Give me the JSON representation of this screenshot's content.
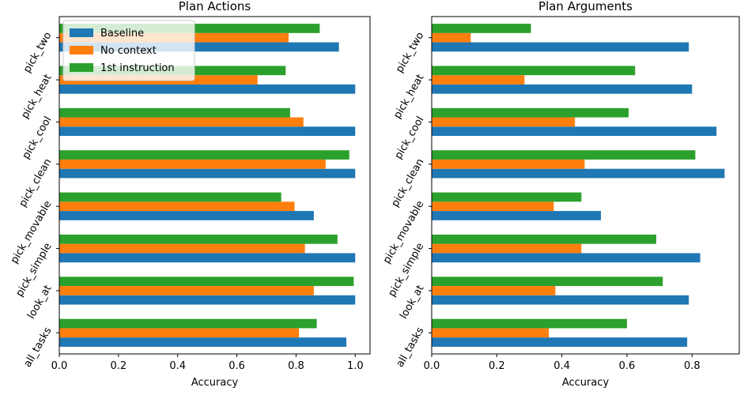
{
  "chart_data": [
    {
      "type": "bar",
      "orientation": "horizontal",
      "title": "Plan Actions",
      "xlabel": "Accuracy",
      "ylabel": "",
      "xlim": [
        0,
        1.05
      ],
      "xticks": [
        0.0,
        0.2,
        0.4,
        0.6,
        0.8,
        1.0
      ],
      "xtick_labels": [
        "0.0",
        "0.2",
        "0.4",
        "0.6",
        "0.8",
        "1.0"
      ],
      "categories": [
        "all_tasks",
        "look_at",
        "pick_simple",
        "pick_movable",
        "pick_clean",
        "pick_cool",
        "pick_heat",
        "pick_two"
      ],
      "series": [
        {
          "name": "Baseline",
          "color": "#1f77b4",
          "values": [
            0.97,
            1.0,
            1.0,
            0.86,
            1.0,
            1.0,
            1.0,
            0.945
          ]
        },
        {
          "name": "No context",
          "color": "#ff7f0e",
          "values": [
            0.81,
            0.86,
            0.83,
            0.795,
            0.9,
            0.825,
            0.67,
            0.775
          ]
        },
        {
          "name": "1st instruction",
          "color": "#2ca02c",
          "values": [
            0.87,
            0.995,
            0.94,
            0.75,
            0.98,
            0.78,
            0.765,
            0.88
          ]
        }
      ],
      "legend": {
        "position": "top-left",
        "entries": [
          "Baseline",
          "No context",
          "1st instruction"
        ]
      },
      "grid": false
    },
    {
      "type": "bar",
      "orientation": "horizontal",
      "title": "Plan Arguments",
      "xlabel": "Accuracy",
      "ylabel": "",
      "xlim": [
        0,
        0.945
      ],
      "xticks": [
        0.0,
        0.2,
        0.4,
        0.6,
        0.8
      ],
      "xtick_labels": [
        "0.0",
        "0.2",
        "0.4",
        "0.6",
        "0.8"
      ],
      "categories": [
        "all_tasks",
        "look_at",
        "pick_simple",
        "pick_movable",
        "pick_clean",
        "pick_cool",
        "pick_heat",
        "pick_two"
      ],
      "series": [
        {
          "name": "Baseline",
          "color": "#1f77b4",
          "values": [
            0.785,
            0.79,
            0.825,
            0.52,
            0.9,
            0.875,
            0.8,
            0.79
          ]
        },
        {
          "name": "No context",
          "color": "#ff7f0e",
          "values": [
            0.36,
            0.38,
            0.46,
            0.375,
            0.47,
            0.44,
            0.285,
            0.12
          ]
        },
        {
          "name": "1st instruction",
          "color": "#2ca02c",
          "values": [
            0.6,
            0.71,
            0.69,
            0.46,
            0.81,
            0.605,
            0.625,
            0.305
          ]
        }
      ],
      "grid": false
    }
  ]
}
